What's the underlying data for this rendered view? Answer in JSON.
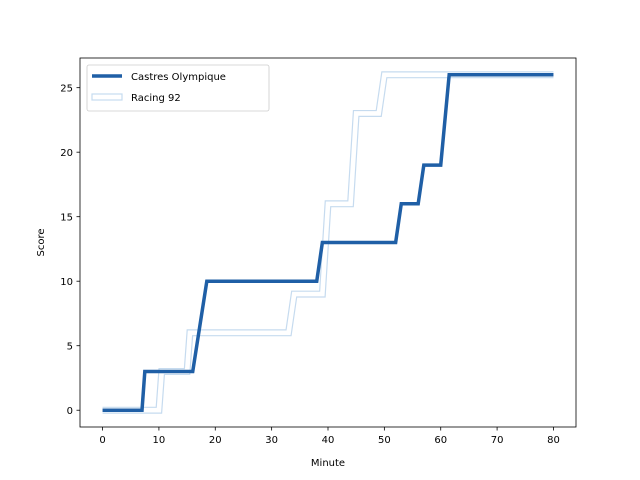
{
  "chart_data": {
    "type": "line",
    "xlabel": "Minute",
    "ylabel": "Score",
    "xlim": [
      -4,
      84
    ],
    "ylim": [
      -1.3,
      27.3
    ],
    "xticks": [
      0,
      10,
      20,
      30,
      40,
      50,
      60,
      70,
      80
    ],
    "yticks": [
      0,
      5,
      10,
      15,
      20,
      25
    ],
    "grid": false,
    "legend_position": "top-left",
    "series": [
      {
        "name": "Castres Olympique",
        "color": "#1f5fa6",
        "style": "thick-solid",
        "x": [
          0,
          7,
          7.5,
          16,
          18.5,
          38,
          39,
          52,
          53,
          56,
          57,
          60,
          61.5,
          80
        ],
        "y": [
          0,
          0,
          3,
          3,
          10,
          10,
          13,
          13,
          16,
          16,
          19,
          19,
          26,
          26
        ]
      },
      {
        "name": "Racing 92",
        "color": "#c6dbef",
        "style": "outline",
        "x": [
          0,
          10,
          10.5,
          15,
          15.5,
          33,
          34,
          39,
          40,
          44,
          45,
          49,
          50,
          80
        ],
        "y": [
          0,
          0,
          3,
          3,
          6,
          6,
          9,
          9,
          16,
          16,
          23,
          23,
          26,
          26
        ]
      }
    ]
  }
}
